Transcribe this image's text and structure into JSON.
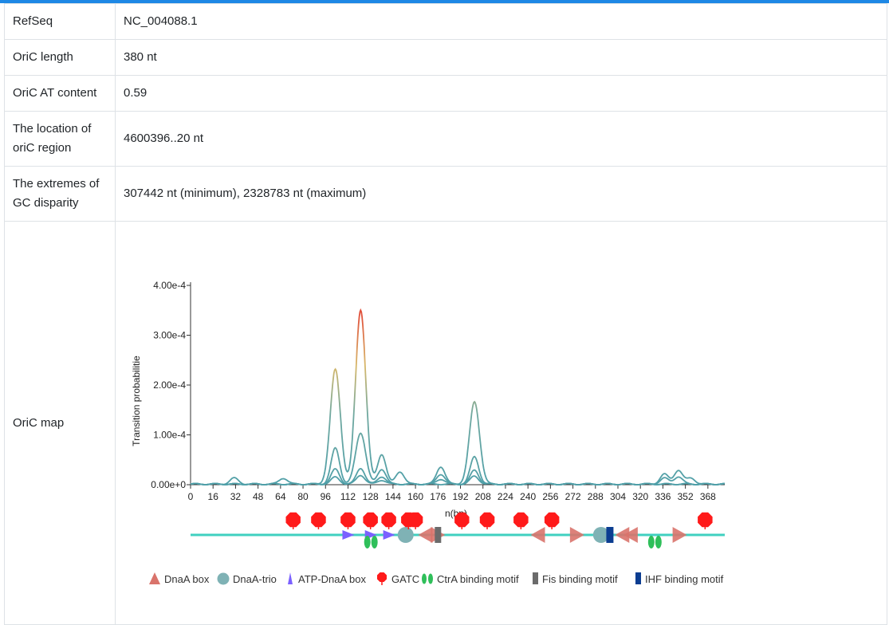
{
  "info_rows": [
    {
      "key": "RefSeq",
      "value": "NC_004088.1"
    },
    {
      "key": "OriC length",
      "value": "380 nt"
    },
    {
      "key": "OriC AT content",
      "value": "0.59"
    },
    {
      "key": "The location of oriC region",
      "value": "4600396..20 nt"
    },
    {
      "key": "The extremes of GC disparity",
      "value": "307442 nt (minimum), 2328783 nt (maximum)"
    }
  ],
  "map_row": {
    "key": "OriC map"
  },
  "colors": {
    "accent_bar": "#1e88e5",
    "dnaa_box": "#d9736b",
    "dnaa_trio": "#7fb2b5",
    "atp_dnaa_box": "#7b61ff",
    "gatc": "#ff1a1a",
    "ctra": "#2fbf5a",
    "fis": "#6b6b6b",
    "ihf": "#0b3d91",
    "track_line": "#40d0c0"
  },
  "chart_data": {
    "type": "line",
    "title": "",
    "xlabel": "n(bp)",
    "ylabel": "Transition probabilitie",
    "xlim": [
      0,
      380
    ],
    "ylim": [
      0,
      0.0004
    ],
    "x_ticks": [
      "0",
      "16",
      "32",
      "48",
      "64",
      "80",
      "96",
      "112",
      "128",
      "144",
      "160",
      "176",
      "192",
      "208",
      "224",
      "240",
      "256",
      "272",
      "288",
      "304",
      "320",
      "336",
      "352",
      "368"
    ],
    "y_ticks": [
      "0.00e+0",
      "1.00e-4",
      "2.00e-4",
      "3.00e-4",
      "4.00e-4"
    ],
    "series": [
      {
        "peaks": [
          [
            103,
            0.00023
          ],
          [
            121,
            0.00035
          ],
          [
            202,
            0.000165
          ],
          [
            31,
            1.2e-05
          ],
          [
            66,
            1.2e-05
          ],
          [
            136,
            6e-05
          ],
          [
            149,
            2.5e-05
          ],
          [
            178,
            3.5e-05
          ],
          [
            337,
            2e-05
          ],
          [
            347,
            2.8e-05
          ],
          [
            356,
            1.2e-05
          ]
        ]
      },
      {
        "peaks": [
          [
            103,
            7.2e-05
          ],
          [
            121,
            0.000103
          ],
          [
            202,
            5.5e-05
          ],
          [
            136,
            3e-05
          ],
          [
            178,
            2e-05
          ],
          [
            337,
            1.2e-05
          ],
          [
            347,
            1.5e-05
          ]
        ]
      },
      {
        "peaks": [
          [
            103,
            3e-05
          ],
          [
            121,
            3.2e-05
          ],
          [
            202,
            2.8e-05
          ],
          [
            136,
            1.5e-05
          ],
          [
            178,
            1e-05
          ]
        ]
      },
      {
        "peaks": [
          [
            103,
            1.4e-05
          ],
          [
            121,
            1.8e-05
          ],
          [
            202,
            1.6e-05
          ],
          [
            136,
            8e-06
          ]
        ]
      }
    ]
  },
  "motif_track": {
    "gatc": [
      73,
      91,
      112,
      128,
      141,
      155,
      160,
      193,
      211,
      235,
      257,
      366
    ],
    "dnaa_box": [
      {
        "pos": 167,
        "dir": "left"
      },
      {
        "pos": 176,
        "dir": "right"
      },
      {
        "pos": 247,
        "dir": "left"
      },
      {
        "pos": 275,
        "dir": "right"
      },
      {
        "pos": 307,
        "dir": "left"
      },
      {
        "pos": 313,
        "dir": "left"
      },
      {
        "pos": 348,
        "dir": "right"
      }
    ],
    "atp_dnaa_box": [
      112,
      128,
      141
    ],
    "dnaa_trio": [
      153,
      292
    ],
    "ctra": [
      128,
      330
    ],
    "fis": [
      176
    ],
    "ihf": [
      298
    ]
  },
  "legend": [
    {
      "icon": "dnaa-box",
      "label": "DnaA box"
    },
    {
      "icon": "dnaa-trio",
      "label": "DnaA-trio"
    },
    {
      "icon": "atp-dnaa-box",
      "label": "ATP-DnaA box"
    },
    {
      "icon": "gatc",
      "label": "GATC"
    },
    {
      "icon": "ctra",
      "label": "CtrA binding motif"
    },
    {
      "icon": "fis",
      "label": "Fis binding motif"
    },
    {
      "icon": "ihf",
      "label": "IHF binding motif"
    }
  ]
}
